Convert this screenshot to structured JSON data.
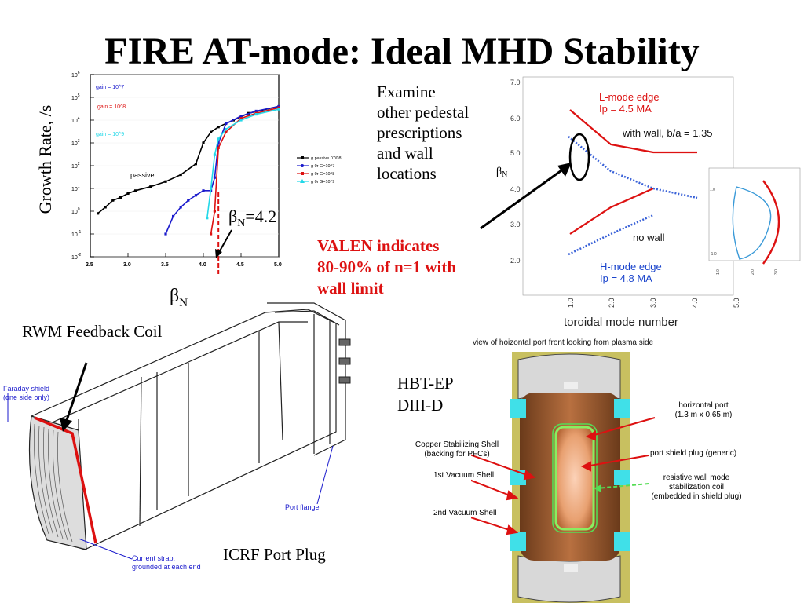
{
  "title": "FIRE AT-mode:  Ideal MHD Stability",
  "left_plot": {
    "y_label": "Growth Rate, /s",
    "x_label_sym": "β",
    "x_label_sub": "N",
    "marker_sym": "β",
    "marker_sub": "N",
    "marker_val": "=4.2",
    "x_ticks": [
      "2.5",
      "3.0",
      "3.5",
      "4.0",
      "4.5",
      "5.0"
    ],
    "y_ticks_base": "10",
    "y_ticks_exp": [
      "-2",
      "-1",
      "0",
      "1",
      "2",
      "3",
      "4",
      "5",
      "6"
    ],
    "gain_labels": [
      "gain = 10^7",
      "gain = 10^8",
      "gain = 10^9"
    ],
    "passive_label": "passive",
    "legend": [
      "g passive 07/08",
      "g 0r G=10^7",
      "g 0r G=10^8",
      "g 0r G=10^9"
    ],
    "colors": {
      "passive": "#000000",
      "g7": "#1a1acc",
      "g8": "#dd1111",
      "g9": "#22d8e8"
    }
  },
  "chart_data": {
    "type": "scatter",
    "xlabel": "βN",
    "ylabel": "Growth Rate, /s",
    "xlim": [
      2.5,
      5.0
    ],
    "ylim": [
      0.01,
      1000000
    ],
    "y_scale": "log",
    "series": [
      {
        "name": "g passive 07/08",
        "x": [
          2.6,
          2.7,
          2.8,
          2.9,
          3.0,
          3.1,
          3.3,
          3.5,
          3.7,
          3.9,
          4.0,
          4.1,
          4.2,
          4.4,
          4.6,
          5.0
        ],
        "y": [
          0.8,
          1.5,
          3,
          4,
          6,
          8,
          12,
          20,
          40,
          120,
          1000,
          3000,
          5000,
          10000,
          20000,
          40000
        ]
      },
      {
        "name": "g 0r G=10^7",
        "x": [
          3.5,
          3.6,
          3.7,
          3.8,
          3.9,
          4.0,
          4.1,
          4.15,
          4.2,
          4.3,
          4.5,
          4.7,
          5.0
        ],
        "y": [
          0.1,
          0.6,
          1.5,
          3,
          5,
          8,
          8,
          30,
          1000,
          7000,
          15000,
          25000,
          40000
        ]
      },
      {
        "name": "g 0r G=10^8",
        "x": [
          4.1,
          4.15,
          4.2,
          4.3,
          4.5,
          4.7,
          5.0
        ],
        "y": [
          0.1,
          1,
          600,
          3000,
          12000,
          20000,
          35000
        ]
      },
      {
        "name": "g 0r G=10^9",
        "x": [
          4.05,
          4.1,
          4.15,
          4.2,
          4.3,
          4.5,
          4.7,
          5.0
        ],
        "y": [
          0.5,
          10,
          300,
          1500,
          4000,
          10000,
          18000,
          30000
        ]
      }
    ]
  },
  "right_plot": {
    "y_label_sym": "β",
    "y_label_sub": "N",
    "x_label": "toroidal mode number",
    "y_ticks": [
      "7.0",
      "6.0",
      "5.0",
      "4.0",
      "3.0",
      "2.0"
    ],
    "x_ticks": [
      "1.0",
      "2.0",
      "3.0",
      "4.0",
      "5.0"
    ],
    "l_mode_1": "L-mode edge",
    "l_mode_2": "Ip = 4.5 MA",
    "with_wall": "with wall, b/a = 1.35",
    "no_wall": "no wall",
    "h_mode_1": "H-mode edge",
    "h_mode_2": "Ip = 4.8 MA",
    "inset_ticks": [
      "1.0",
      "-1.0"
    ],
    "inset_xticks": [
      "1.0",
      "2.0",
      "3.0"
    ]
  },
  "examine_lines": [
    "Examine",
    "other pedestal",
    "prescriptions",
    "and wall",
    "locations"
  ],
  "valen_lines": [
    "VALEN indicates",
    "80-90% of n=1 with",
    "wall limit"
  ],
  "rwm_label": "RWM Feedback Coil",
  "faraday_label": "Faraday shield\n(one side only)",
  "port_flange_label": "Port flange",
  "current_strap_label": "Current strap,\ngrounded at each end",
  "icrf_label": "ICRF Port Plug",
  "hbt_label": "HBT-EP",
  "diiid_label": "DIII-D",
  "port_view": {
    "caption": "view of hoizontal port front looking from plasma side",
    "horizontal_port": "horizontal port",
    "horizontal_port_dims": "(1.3 m x 0.65 m)",
    "copper_1": "Copper Stabilizing  Shell",
    "copper_2": "(backing for PFCs)",
    "port_shield": "port shield plug (generic)",
    "vac1": "1st Vacuum Shell",
    "rwm_1": "resistive wall mode",
    "rwm_2": "stabilization coil",
    "rwm_3": "(embedded in shield plug)",
    "vac2": "2nd Vacuum Shell"
  }
}
